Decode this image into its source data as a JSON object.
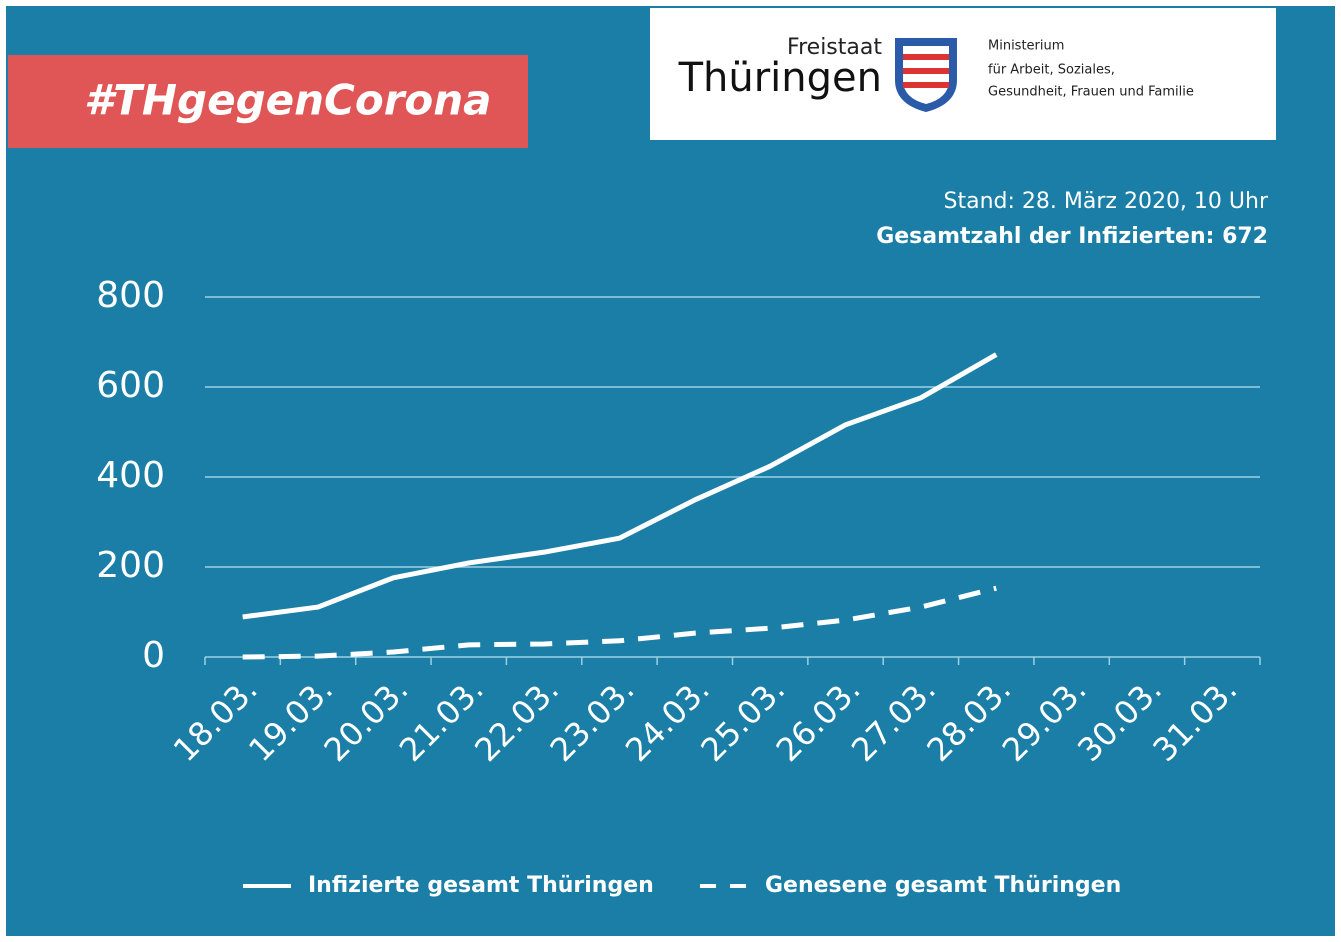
{
  "header": {
    "hashtag": "#THgegenCorona",
    "logo": {
      "line1": "Freistaat",
      "line2": "Thüringen",
      "ministry": [
        "Ministerium",
        "für Arbeit, Soziales,",
        "Gesundheit, Frauen und Familie"
      ]
    }
  },
  "chart_data": {
    "type": "line",
    "annotations": [
      "Stand: 28. März 2020, 10 Uhr",
      "Gesamtzahl der Infizierten: 672"
    ],
    "categories": [
      "18.03.",
      "19.03.",
      "20.03.",
      "21.03.",
      "22.03.",
      "23.03.",
      "24.03.",
      "25.03.",
      "26.03.",
      "27.03.",
      "28.03.",
      "29.03.",
      "30.03.",
      "31.03."
    ],
    "series": [
      {
        "name": "Infizierte gesamt Thüringen",
        "color": "#ffffff",
        "dashed": false,
        "values": [
          89,
          111,
          176,
          209,
          233,
          264,
          349,
          424,
          516,
          576,
          672,
          null,
          null,
          null
        ]
      },
      {
        "name": "Genesene gesamt Thüringen",
        "color": "#ffffff",
        "dashed": true,
        "values": [
          0,
          2,
          11,
          27,
          29,
          36,
          53,
          64,
          82,
          111,
          153,
          null,
          null,
          null
        ]
      }
    ],
    "ylim": [
      0,
      800
    ],
    "yticks": [
      0,
      200,
      400,
      600,
      800
    ],
    "grid": true
  }
}
